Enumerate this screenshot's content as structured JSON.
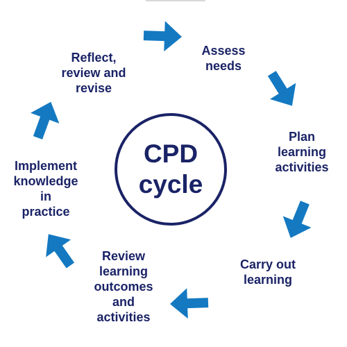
{
  "diagram": {
    "center": {
      "lines": [
        "CPD",
        "cycle"
      ]
    },
    "stages": [
      {
        "id": "assess",
        "lines": [
          "Assess",
          "needs"
        ]
      },
      {
        "id": "plan",
        "lines": [
          "Plan",
          "learning",
          "activities"
        ]
      },
      {
        "id": "carry",
        "lines": [
          "Carry out",
          "learning"
        ]
      },
      {
        "id": "review",
        "lines": [
          "Review",
          "learning",
          "outcomes",
          "and",
          "activities"
        ]
      },
      {
        "id": "implement",
        "lines": [
          "Implement",
          "knowledge",
          "in",
          "practice"
        ]
      },
      {
        "id": "reflect",
        "lines": [
          "Reflect,",
          "review and",
          "revise"
        ]
      }
    ],
    "colors": {
      "text": "#1a2366",
      "arrow": "#1479c1",
      "circle": "#1a2366"
    }
  }
}
